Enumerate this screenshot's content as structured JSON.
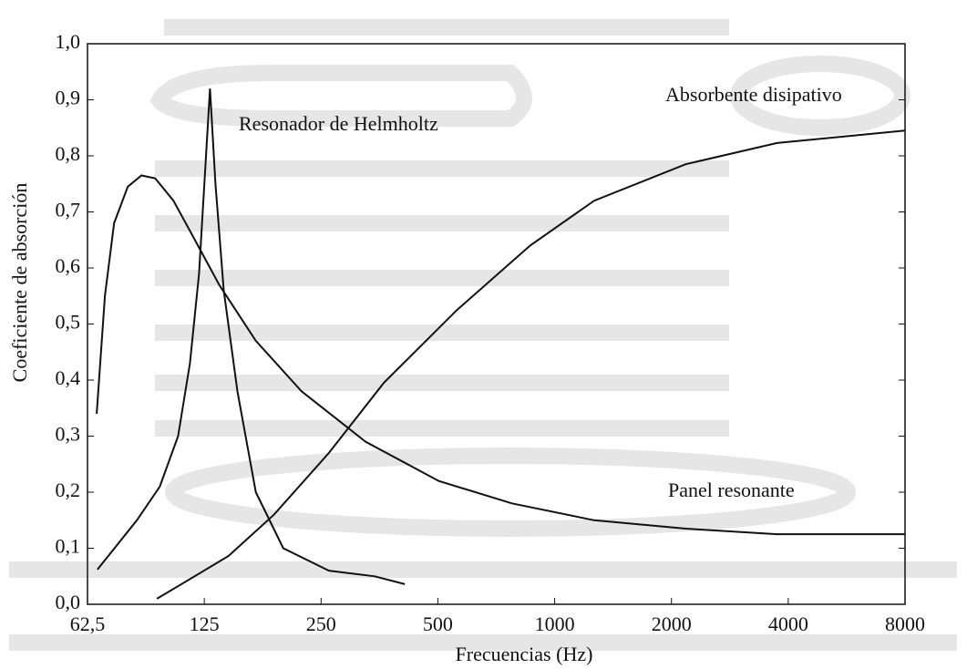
{
  "chart_data": {
    "type": "line",
    "x_label": "Frecuencias (Hz)",
    "y_label": "Coeficiente de absorción",
    "xscale": "log",
    "xlim": [
      62.5,
      8000
    ],
    "ylim": [
      0,
      1
    ],
    "xticks": [
      {
        "value": 62.5,
        "label": "62,5"
      },
      125,
      250,
      500,
      1000,
      2000,
      4000,
      8000
    ],
    "yticks": [
      {
        "value": 0,
        "label": "0,0"
      },
      {
        "value": 0.1,
        "label": "0,1"
      },
      {
        "value": 0.2,
        "label": "0,2"
      },
      {
        "value": 0.3,
        "label": "0,3"
      },
      {
        "value": 0.4,
        "label": "0,4"
      },
      {
        "value": 0.5,
        "label": "0,5"
      },
      {
        "value": 0.6,
        "label": "0,6"
      },
      {
        "value": 0.7,
        "label": "0,7"
      },
      {
        "value": 0.8,
        "label": "0,8"
      },
      {
        "value": 0.9,
        "label": "0,9"
      },
      {
        "value": 1,
        "label": "1,0"
      }
    ],
    "series": [
      {
        "name": "Panel resonante",
        "color": "#111111",
        "x": [
          66.0,
          69.3,
          73.2,
          79.4,
          86.1,
          93.4,
          104.1,
          116.1,
          136.6,
          169.7,
          222.6,
          325.6,
          502.5,
          775.9,
          1264,
          2176,
          3743,
          8000
        ],
        "values": [
          0.34,
          0.55,
          0.68,
          0.745,
          0.765,
          0.76,
          0.72,
          0.66,
          0.57,
          0.47,
          0.38,
          0.29,
          0.22,
          0.18,
          0.15,
          0.135,
          0.125,
          0.125
        ]
      },
      {
        "name": "Resonador de Helmholtz",
        "color": "#111111",
        "x": [
          66.3,
          83.8,
          96.0,
          107,
          114.8,
          121.2,
          125.9,
          129.3,
          133.6,
          140.3,
          152.2,
          169.7,
          199.7,
          261.9,
          343.6,
          411.0
        ],
        "values": [
          0.062,
          0.15,
          0.21,
          0.3,
          0.43,
          0.59,
          0.785,
          0.92,
          0.75,
          0.56,
          0.38,
          0.2,
          0.1,
          0.06,
          0.05,
          0.036
        ]
      },
      {
        "name": "Absorbente disipativo",
        "color": "#111111",
        "x": [
          94.4,
          109.9,
          144.2,
          189.1,
          261.9,
          362.7,
          560,
          864.5,
          1264,
          2176,
          3743,
          8000
        ],
        "values": [
          0.01,
          0.037,
          0.086,
          0.16,
          0.27,
          0.395,
          0.525,
          0.64,
          0.72,
          0.785,
          0.823,
          0.845
        ]
      }
    ]
  }
}
